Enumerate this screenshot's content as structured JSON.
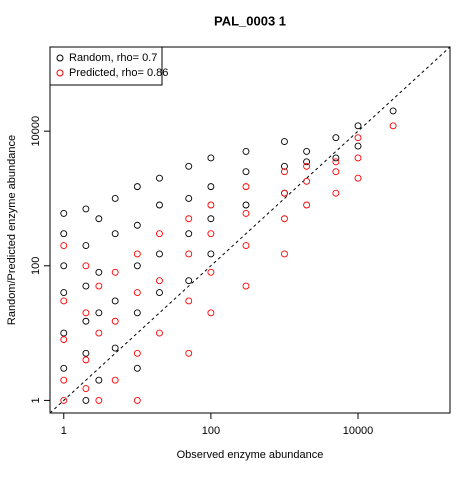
{
  "chart_data": {
    "type": "scatter",
    "title": "PAL_0003 1",
    "xlabel": "Observed enzyme abundance",
    "ylabel": "Random/Predicted enzyme abundance",
    "xscale": "log",
    "yscale": "log",
    "xlim": [
      0.65,
      178000
    ],
    "ylim": [
      0.65,
      178000
    ],
    "xticks": [
      1,
      100,
      10000
    ],
    "yticks": [
      1,
      100,
      10000
    ],
    "legend": "top-left",
    "series": [
      {
        "name": "Random, rho= 0.7",
        "color": "#000000",
        "x": [
          1,
          1,
          1,
          1,
          1,
          1,
          2,
          2,
          2,
          2,
          2,
          2,
          3,
          3,
          3,
          3,
          5,
          5,
          5,
          5,
          10,
          10,
          10,
          10,
          10,
          20,
          20,
          20,
          20,
          50,
          50,
          50,
          50,
          100,
          100,
          100,
          100,
          300,
          300,
          300,
          1000,
          1000,
          1000,
          2000,
          2000,
          5000,
          5000,
          10000,
          10000,
          30000
        ],
        "values": [
          600,
          300,
          100,
          40,
          10,
          3,
          700,
          200,
          50,
          15,
          5,
          1,
          500,
          80,
          20,
          2,
          1000,
          300,
          30,
          6,
          1500,
          400,
          100,
          20,
          3,
          2000,
          800,
          150,
          40,
          3000,
          1000,
          300,
          60,
          4000,
          1500,
          500,
          150,
          5000,
          2500,
          800,
          7000,
          3000,
          1200,
          5000,
          3500,
          8000,
          4000,
          12000,
          6000,
          20000
        ]
      },
      {
        "name": "Predicted, rho= 0.86",
        "color": "#ff0000",
        "x": [
          1,
          1,
          1,
          1,
          1,
          2,
          2,
          2,
          2,
          3,
          3,
          3,
          5,
          5,
          5,
          10,
          10,
          10,
          10,
          20,
          20,
          20,
          50,
          50,
          50,
          50,
          100,
          100,
          100,
          100,
          300,
          300,
          300,
          300,
          1000,
          1000,
          1000,
          1000,
          2000,
          2000,
          2000,
          5000,
          5000,
          5000,
          10000,
          10000,
          10000,
          30000
        ],
        "values": [
          200,
          30,
          8,
          2,
          1,
          100,
          20,
          4,
          1.5,
          50,
          10,
          1,
          80,
          15,
          2,
          150,
          40,
          5,
          1,
          300,
          60,
          10,
          500,
          150,
          30,
          5,
          800,
          300,
          80,
          20,
          1500,
          600,
          200,
          50,
          2500,
          1200,
          500,
          150,
          3000,
          1800,
          800,
          3500,
          2500,
          1200,
          8000,
          4000,
          2000,
          12000
        ]
      }
    ]
  }
}
